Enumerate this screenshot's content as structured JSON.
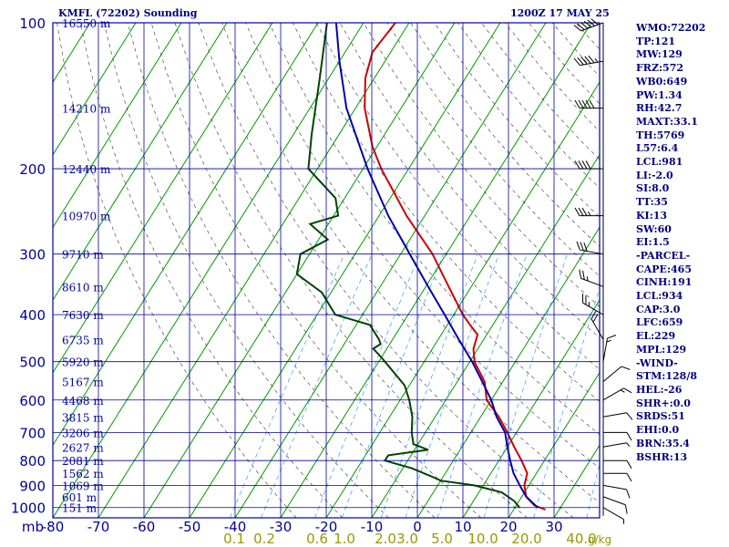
{
  "header": {
    "station": "KMFL (72202) Sounding",
    "time": "1200Z 17 MAY 25"
  },
  "stats": [
    "WMO:72202",
    "TP:121",
    "MW:129",
    "FRZ:572",
    "WB0:649",
    "PW:1.34",
    "RH:42.7",
    "MAXT:33.1",
    "TH:5769",
    "L57:6.4",
    "LCL:981",
    "LI:-2.0",
    "SI:8.0",
    "TT:35",
    "KI:13",
    "SW:60",
    "EI:1.5",
    "-PARCEL-",
    "CAPE:465",
    "CINH:191",
    "LCL:934",
    "CAP:3.0",
    "LFC:659",
    "EL:229",
    "MPL:129",
    "-WIND-",
    "STM:128/8",
    "HEL:-26",
    "SHR+:0.0",
    "SRDS:51",
    "EHI:0.0",
    "BRN:35.4",
    "BSHR:13"
  ],
  "colors": {
    "grid": "#0000a0",
    "isotherm": "#009900",
    "temperature": "#cc0000",
    "dewpoint": "#004400",
    "parcel": "#0000aa",
    "mixing_ratio": "#3399ff",
    "adiabat": "#000000",
    "text": "#000080",
    "mixing_label": "#999900"
  },
  "chart_data": {
    "type": "line",
    "title": "KMFL (72202) Sounding",
    "pressure_unit": "mb",
    "pressure_levels": [
      "100",
      "200",
      "300",
      "400",
      "500",
      "600",
      "700",
      "800",
      "900",
      "1000"
    ],
    "pressure_values": [
      100,
      200,
      300,
      400,
      500,
      600,
      700,
      800,
      900,
      1000
    ],
    "temperature_ticks": [
      "-80",
      "-70",
      "-60",
      "-50",
      "-40",
      "-30",
      "-20",
      "-10",
      "0",
      "10",
      "20",
      "30"
    ],
    "temperature_values": [
      -80,
      -70,
      -60,
      -50,
      -40,
      -30,
      -20,
      -10,
      0,
      10,
      20,
      30
    ],
    "height_labels": [
      {
        "p": 100,
        "text": "16550 m"
      },
      {
        "p": 150,
        "text": "14210 m"
      },
      {
        "p": 200,
        "text": "12440 m"
      },
      {
        "p": 250,
        "text": "10970 m"
      },
      {
        "p": 300,
        "text": "9710 m"
      },
      {
        "p": 350,
        "text": "8610 m"
      },
      {
        "p": 400,
        "text": "7630 m"
      },
      {
        "p": 450,
        "text": "6735 m"
      },
      {
        "p": 500,
        "text": "5920 m"
      },
      {
        "p": 550,
        "text": "5167 m"
      },
      {
        "p": 600,
        "text": "4468 m"
      },
      {
        "p": 650,
        "text": "3815 m"
      },
      {
        "p": 700,
        "text": "3206 m"
      },
      {
        "p": 750,
        "text": "2627 m"
      },
      {
        "p": 800,
        "text": "2081 m"
      },
      {
        "p": 850,
        "text": "1562 m"
      },
      {
        "p": 900,
        "text": "1069 m"
      },
      {
        "p": 950,
        "text": "601 m"
      },
      {
        "p": 1000,
        "text": "151 m"
      }
    ],
    "mixing_ratio_labels": [
      "0.1",
      "0.2",
      "0.6",
      "1.0",
      "2.0",
      "3.0",
      "5.0",
      "10.0",
      "20.0",
      "40.0"
    ],
    "mixing_ratio_values": [
      0.1,
      0.2,
      0.6,
      1.0,
      2.0,
      3.0,
      5.0,
      10.0,
      20.0,
      40.0
    ],
    "mixing_ratio_unit": "g/kg",
    "series": [
      {
        "key": "temperature",
        "points": [
          [
            1010,
            27
          ],
          [
            990,
            24
          ],
          [
            950,
            21
          ],
          [
            900,
            19
          ],
          [
            850,
            18
          ],
          [
            800,
            15
          ],
          [
            750,
            11.5
          ],
          [
            700,
            8
          ],
          [
            650,
            4
          ],
          [
            620,
            1
          ],
          [
            600,
            -1
          ],
          [
            550,
            -4
          ],
          [
            500,
            -9
          ],
          [
            470,
            -11
          ],
          [
            440,
            -12
          ],
          [
            420,
            -15
          ],
          [
            400,
            -18
          ],
          [
            350,
            -25
          ],
          [
            300,
            -33
          ],
          [
            250,
            -44
          ],
          [
            200,
            -56
          ],
          [
            180,
            -61
          ],
          [
            150,
            -68
          ],
          [
            130,
            -72
          ],
          [
            115,
            -74
          ],
          [
            100,
            -73
          ]
        ]
      },
      {
        "key": "dewpoint",
        "points": [
          [
            1000,
            21
          ],
          [
            970,
            19
          ],
          [
            930,
            15
          ],
          [
            900,
            8
          ],
          [
            880,
            0
          ],
          [
            860,
            -3
          ],
          [
            830,
            -8
          ],
          [
            800,
            -15
          ],
          [
            780,
            -15
          ],
          [
            760,
            -7
          ],
          [
            740,
            -11
          ],
          [
            700,
            -13
          ],
          [
            650,
            -15
          ],
          [
            600,
            -18
          ],
          [
            560,
            -21
          ],
          [
            520,
            -26
          ],
          [
            490,
            -30
          ],
          [
            470,
            -33
          ],
          [
            460,
            -32
          ],
          [
            450,
            -33
          ],
          [
            420,
            -37
          ],
          [
            400,
            -46
          ],
          [
            360,
            -52
          ],
          [
            330,
            -60
          ],
          [
            300,
            -62
          ],
          [
            280,
            -58
          ],
          [
            260,
            -64
          ],
          [
            250,
            -59
          ],
          [
            230,
            -62
          ],
          [
            200,
            -72
          ],
          [
            170,
            -76
          ],
          [
            130,
            -82
          ],
          [
            100,
            -88
          ]
        ]
      },
      {
        "key": "parcel",
        "points": [
          [
            1000,
            25
          ],
          [
            950,
            21
          ],
          [
            900,
            18
          ],
          [
            850,
            15
          ],
          [
            800,
            12.5
          ],
          [
            750,
            10
          ],
          [
            700,
            7.5
          ],
          [
            650,
            3.5
          ],
          [
            600,
            0
          ],
          [
            550,
            -4.5
          ],
          [
            500,
            -9.5
          ],
          [
            450,
            -15.5
          ],
          [
            400,
            -22
          ],
          [
            350,
            -29.5
          ],
          [
            300,
            -38
          ],
          [
            250,
            -48
          ],
          [
            200,
            -59
          ],
          [
            150,
            -72
          ],
          [
            120,
            -80
          ],
          [
            100,
            -86
          ]
        ]
      }
    ],
    "wind_barbs": [
      {
        "p": 1000,
        "spd": 5,
        "dir": 120
      },
      {
        "p": 950,
        "spd": 10,
        "dir": 110
      },
      {
        "p": 900,
        "spd": 10,
        "dir": 100
      },
      {
        "p": 850,
        "spd": 10,
        "dir": 90
      },
      {
        "p": 800,
        "spd": 10,
        "dir": 90
      },
      {
        "p": 750,
        "spd": 5,
        "dir": 80
      },
      {
        "p": 700,
        "spd": 10,
        "dir": 90
      },
      {
        "p": 650,
        "spd": 10,
        "dir": 80
      },
      {
        "p": 600,
        "spd": 15,
        "dir": 60
      },
      {
        "p": 550,
        "spd": 10,
        "dir": 50
      },
      {
        "p": 500,
        "spd": 15,
        "dir": 10
      },
      {
        "p": 450,
        "spd": 20,
        "dir": 330
      },
      {
        "p": 400,
        "spd": 25,
        "dir": 300
      },
      {
        "p": 350,
        "spd": 25,
        "dir": 290
      },
      {
        "p": 300,
        "spd": 30,
        "dir": 280
      },
      {
        "p": 250,
        "spd": 35,
        "dir": 270
      },
      {
        "p": 200,
        "spd": 40,
        "dir": 270
      },
      {
        "p": 150,
        "spd": 50,
        "dir": 270
      },
      {
        "p": 120,
        "spd": 55,
        "dir": 260
      },
      {
        "p": 100,
        "spd": 60,
        "dir": 250
      }
    ]
  }
}
